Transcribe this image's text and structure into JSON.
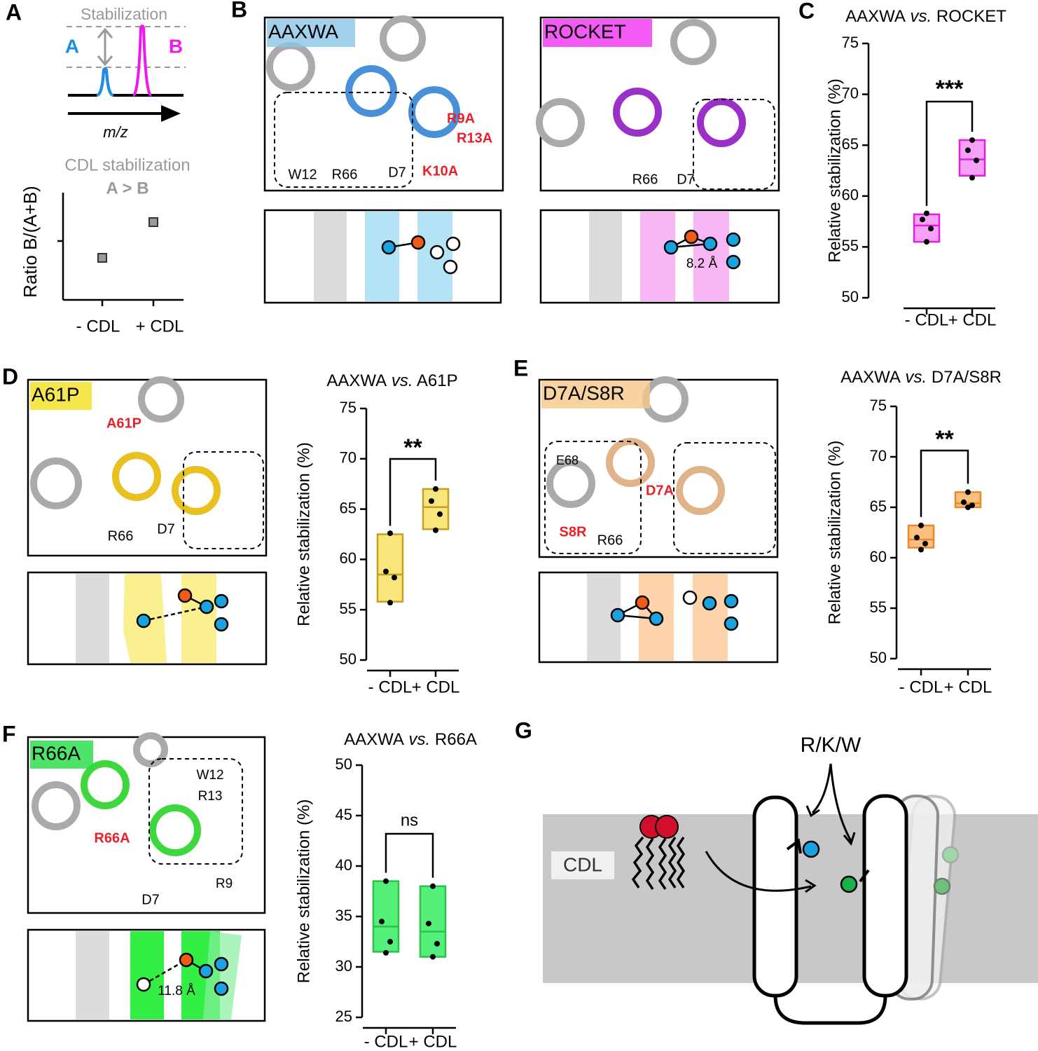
{
  "figure": {
    "panel_labels": [
      "A",
      "B",
      "C",
      "D",
      "E",
      "F",
      "G"
    ],
    "A": {
      "stabilization": "Stabilization",
      "peak_a": "A",
      "peak_b": "B",
      "x_axis": "m/z",
      "plot_title": "CDL stabilization",
      "plot_subtitle": "A > B",
      "y_label": "Ratio B/(A+B)",
      "categories": [
        "- CDL",
        "+ CDL"
      ]
    },
    "B": {
      "aaxwa": {
        "name": "AAXWA",
        "labels": [
          "R9A",
          "R13A",
          "K10A",
          "W12",
          "R66",
          "D7"
        ]
      },
      "rocket": {
        "name": "ROCKET",
        "labels": [
          "R66",
          "D7"
        ],
        "distance": "8.2 Å"
      }
    },
    "D": {
      "name": "A61P",
      "labels": [
        "A61P",
        "R66",
        "D7"
      ]
    },
    "E": {
      "name": "D7A/S8R",
      "labels": [
        "E68",
        "D7A",
        "S8R",
        "R66"
      ]
    },
    "F": {
      "name": "R66A",
      "labels": [
        "W12",
        "R13",
        "R66A",
        "D7",
        "R9"
      ],
      "distance": "11.8 Å"
    },
    "G": {
      "residues": "R/K/W",
      "lipid": "CDL"
    }
  },
  "chart_data": [
    {
      "type": "box",
      "title": [
        "AAXWA",
        "vs.",
        "ROCKET"
      ],
      "y_label": "Relative stabilization (%)",
      "categories": [
        "- CDL",
        "+ CDL"
      ],
      "color": "#e020e0",
      "fill": "#f7a0f7",
      "ylim": [
        50,
        75
      ],
      "yticks": [
        50,
        55,
        60,
        65,
        70,
        75
      ],
      "significance": "***",
      "boxes": [
        {
          "points": [
            58.3,
            57.7,
            56.8,
            55.5
          ],
          "min": 55.5,
          "median": 57.1,
          "max": 58.2
        },
        {
          "points": [
            65.5,
            64.5,
            63.5,
            61.8
          ],
          "min": 62,
          "median": 63.6,
          "max": 65.5
        }
      ]
    },
    {
      "type": "box",
      "title": [
        "AAXWA",
        "vs.",
        "A61P"
      ],
      "y_label": "Relative stabilization (%)",
      "categories": [
        "- CDL",
        "+ CDL"
      ],
      "color": "#c8a020",
      "fill": "#f8e67c",
      "ylim": [
        50,
        75
      ],
      "yticks": [
        50,
        55,
        60,
        65,
        70,
        75
      ],
      "significance": "**",
      "boxes": [
        {
          "points": [
            62.6,
            58.8,
            58.2,
            55.7
          ],
          "min": 55.8,
          "median": 58.5,
          "max": 62.5
        },
        {
          "points": [
            67,
            65.8,
            64.5,
            62.9
          ],
          "min": 63,
          "median": 65.2,
          "max": 67
        }
      ]
    },
    {
      "type": "box",
      "title": [
        "AAXWA",
        "vs.",
        "D7A/S8R"
      ],
      "y_label": "Relative stabilization (%)",
      "categories": [
        "- CDL",
        "+ CDL"
      ],
      "color": "#e88a2a",
      "fill": "#fbbf80",
      "ylim": [
        50,
        75
      ],
      "yticks": [
        50,
        55,
        60,
        65,
        70,
        75
      ],
      "significance": "**",
      "boxes": [
        {
          "points": [
            63.2,
            62,
            61.4,
            60.8
          ],
          "min": 61,
          "median": 61.8,
          "max": 63.2
        },
        {
          "points": [
            66.5,
            65.5,
            65.2,
            65
          ],
          "min": 65,
          "median": 65.4,
          "max": 66.5
        }
      ]
    },
    {
      "type": "box",
      "title": [
        "AAXWA",
        "vs.",
        "R66A"
      ],
      "y_label": "Relative stabilization (%)",
      "categories": [
        "- CDL",
        "+ CDL"
      ],
      "color": "#2bc24a",
      "fill": "#55f07a",
      "ylim": [
        25,
        50
      ],
      "yticks": [
        25,
        30,
        35,
        40,
        45,
        50
      ],
      "significance": "ns",
      "boxes": [
        {
          "points": [
            38.5,
            34.5,
            32.5,
            31.4
          ],
          "min": 31.5,
          "median": 34,
          "max": 38.5
        },
        {
          "points": [
            38,
            34.3,
            32.3,
            31
          ],
          "min": 31,
          "median": 33.5,
          "max": 38
        }
      ]
    }
  ]
}
